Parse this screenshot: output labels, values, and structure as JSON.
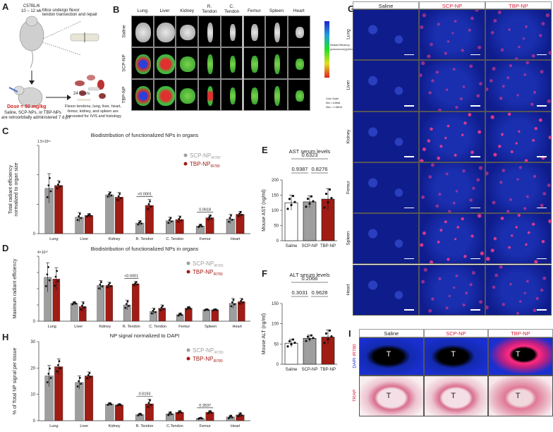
{
  "panel_letters": {
    "A": "A",
    "B": "B",
    "C": "C",
    "D": "D",
    "E": "E",
    "F": "F",
    "G": "G",
    "H": "H",
    "I": "I"
  },
  "panelA": {
    "mouse_label_line1": "C57BL/6",
    "mouse_label_line2": "10 – 12 wk",
    "surgery_text_line1": "Mice undergo flexor",
    "surgery_text_line2": "tendon transection and repair",
    "dose": "Dose = 50 mg/kg",
    "admin_line1": "Saline, SCP-NPs, or TBP-NPs",
    "admin_line2": "are retroorbitally administered 7 d.p.i",
    "time": "24 hours",
    "harvest_line1": "Flexor tendons, lung, liver, heart,",
    "harvest_line2": "femur, kidney, and spleen are",
    "harvest_line3": "harvested for IVIS and histology"
  },
  "panelB": {
    "organs": [
      "Lung",
      "Liver",
      "Kidney",
      "R.\nTendon",
      "C.\nTendon",
      "Femur",
      "Spleen",
      "Heart"
    ],
    "groups": [
      "Saline",
      "SCP-NP",
      "TBP-NP"
    ],
    "scale_note_line1": "Radiant Efficiency",
    "scale_note_line2": "(p/sec/cm²/sr)/(µW/cm²)",
    "color_scale_line1": "Color Scale",
    "color_scale_line2": "Min = 6.58e8",
    "color_scale_line3": "Max = 1.38e10"
  },
  "panelC": {
    "title": "Biodistribution of functionalized NPs in organs",
    "ylabel_line1": "Total radiant efficiency",
    "ylabel_line2": "normalized to organ size",
    "exp_label": "1.5×10¹¹"
  },
  "panelD": {
    "title": "Biodistribution of functionalized NPs in organs",
    "ylabel": "Maximum radiant efficiency",
    "exp_label": "4×10¹⁰"
  },
  "panelE": {
    "title": "AST serum levels",
    "ylabel": "Mouse AST (ng/ml)"
  },
  "panelF": {
    "title": "ALT serum levels",
    "ylabel": "Mouse ALT (ng/ml)"
  },
  "panelG": {
    "columns": [
      "Saline",
      "SCP-NP",
      "TBP-NP"
    ],
    "rows": [
      "Lung",
      "Liver",
      "Kidney",
      "Femur",
      "Spleen",
      "Heart"
    ]
  },
  "panelH": {
    "title": "NP signal normalized to DAPI",
    "ylabel": "% of Total NP signal per tissue"
  },
  "panelI": {
    "columns": [
      "Saline",
      "SCP-NP",
      "TBP-NP"
    ],
    "row1_label_dapi": "DAPI",
    "row1_label_ir": " IR780",
    "row2_label": "TRAP",
    "T": "T"
  },
  "colors": {
    "scp": "#9e9e9e",
    "tbp": "#a01c14",
    "saline": "#ffffff",
    "dapi": "#1a2fd0",
    "ir": "#ff2a80"
  },
  "chart_data": [
    {
      "id": "C",
      "type": "bar",
      "title": "Biodistribution of functionalized NPs in organs",
      "ylabel": "Total radiant efficiency normalized to organ size",
      "categories": [
        "Lung",
        "Liver",
        "Kidney",
        "R. Tendon",
        "C. Tendon",
        "Femur",
        "Heart"
      ],
      "ylim": [
        0,
        1.5
      ],
      "yticks": [
        0,
        0.5,
        1.0,
        1.5
      ],
      "ytick_labels": [
        "0",
        "",
        "",
        ""
      ],
      "series": [
        {
          "name": "SCP-NP",
          "name_sub": "IR780",
          "color": "#9e9e9e",
          "values": [
            0.77,
            0.28,
            0.66,
            0.18,
            0.22,
            0.13,
            0.25
          ],
          "err": [
            0.25,
            0.08,
            0.05,
            0.04,
            0.06,
            0.03,
            0.08
          ]
        },
        {
          "name": "TBP-NP",
          "name_sub": "IR780",
          "color": "#a01c14",
          "values": [
            0.82,
            0.31,
            0.62,
            0.48,
            0.24,
            0.27,
            0.33
          ],
          "err": [
            0.08,
            0.03,
            0.08,
            0.1,
            0.06,
            0.05,
            0.05
          ]
        }
      ],
      "annotations": [
        {
          "category": "R. Tendon",
          "text": "<0.0001"
        },
        {
          "category": "Femur",
          "text": "0.0618"
        }
      ]
    },
    {
      "id": "D",
      "type": "bar",
      "title": "Biodistribution of functionalized NPs in organs",
      "ylabel": "Maximum radiant efficiency",
      "categories": [
        "Lung",
        "Liver",
        "Kidney",
        "R. Tendon",
        "C. Tendon",
        "Femur",
        "Spleen",
        "Heart"
      ],
      "ylim": [
        0,
        4
      ],
      "yticks": [
        0,
        1,
        2,
        3,
        4
      ],
      "ytick_labels": [
        "0",
        "",
        "",
        "",
        ""
      ],
      "series": [
        {
          "name": "SCP-NP",
          "name_sub": "IR780",
          "color": "#9e9e9e",
          "values": [
            2.7,
            1.1,
            2.2,
            1.0,
            0.6,
            0.4,
            0.7,
            1.1
          ],
          "err": [
            0.9,
            0.1,
            0.3,
            0.3,
            0.2,
            0.1,
            0.05,
            0.3
          ]
        },
        {
          "name": "TBP-NP",
          "name_sub": "IR780",
          "color": "#a01c14",
          "values": [
            2.6,
            0.9,
            2.2,
            2.3,
            0.8,
            0.8,
            0.7,
            1.2
          ],
          "err": [
            0.7,
            0.3,
            0.2,
            0.15,
            0.2,
            0.1,
            0.05,
            0.2
          ]
        }
      ],
      "annotations": [
        {
          "category": "R. Tendon",
          "text": "<0.0001"
        }
      ]
    },
    {
      "id": "E",
      "type": "bar",
      "title": "AST serum levels",
      "ylabel": "Mouse AST (ng/ml)",
      "categories": [
        "Saline",
        "SCP-NP",
        "TBP-NP"
      ],
      "values": [
        125,
        128,
        137
      ],
      "err": [
        25,
        20,
        35
      ],
      "colors": [
        "#ffffff",
        "#9e9e9e",
        "#a01c14"
      ],
      "ylim": [
        0,
        200
      ],
      "yticks": [
        0,
        50,
        100,
        150,
        200
      ],
      "brackets": [
        {
          "from": 0,
          "to": 1,
          "text": "0.9387"
        },
        {
          "from": 1,
          "to": 2,
          "text": "0.8276"
        },
        {
          "from": 0,
          "to": 2,
          "text": "0.6323"
        }
      ]
    },
    {
      "id": "F",
      "type": "bar",
      "title": "ALT serum levels",
      "ylabel": "Mouse ALT (ng/ml)",
      "categories": [
        "Saline",
        "SCP-NP",
        "TBP-NP"
      ],
      "values": [
        52,
        64,
        67
      ],
      "err": [
        10,
        8,
        18
      ],
      "colors": [
        "#ffffff",
        "#9e9e9e",
        "#a01c14"
      ],
      "ylim": [
        0,
        150
      ],
      "yticks": [
        0,
        50,
        100,
        150
      ],
      "brackets": [
        {
          "from": 0,
          "to": 1,
          "text": "0.3031"
        },
        {
          "from": 1,
          "to": 2,
          "text": "0.9628"
        },
        {
          "from": 0,
          "to": 2,
          "text": "0.2066"
        }
      ]
    },
    {
      "id": "H",
      "type": "bar",
      "title": "NP signal normalized to DAPI",
      "ylabel": "% of Total NP signal per tissue",
      "categories": [
        "Lung",
        "Liver",
        "Kidney",
        "R. Tendon",
        "C.Tendon",
        "Femur",
        "Heart"
      ],
      "ylim": [
        0,
        30
      ],
      "yticks": [
        0,
        10,
        20,
        30
      ],
      "series": [
        {
          "name": "SCP-NP",
          "name_sub": "IR780",
          "color": "#9e9e9e",
          "values": [
            17,
            14.5,
            6.3,
            2.3,
            2.6,
            0.9,
            1.4
          ],
          "err": [
            4,
            2.5,
            0.5,
            0.5,
            0.8,
            0.3,
            0.7
          ]
        },
        {
          "name": "TBP-NP",
          "name_sub": "IR780",
          "color": "#a01c14",
          "values": [
            20.5,
            17,
            6,
            6.4,
            3.2,
            3.2,
            2.2
          ],
          "err": [
            3,
            1.5,
            0.4,
            1.8,
            0.6,
            0.6,
            0.8
          ]
        }
      ],
      "annotations": [
        {
          "category": "R. Tendon",
          "text": "0.0193"
        },
        {
          "category": "Femur",
          "text": "0.3537"
        }
      ]
    }
  ]
}
